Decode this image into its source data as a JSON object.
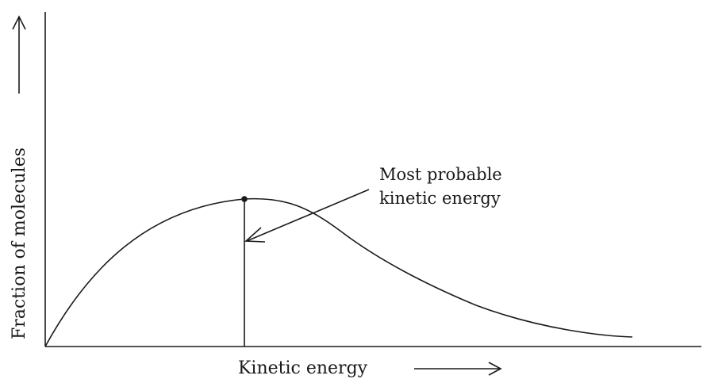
{
  "diagram": {
    "type": "line",
    "xlabel": "Kinetic energy",
    "ylabel": "Fraction of molecules",
    "annotation": {
      "line1": "Most probable",
      "line2": "kinetic energy"
    }
  }
}
